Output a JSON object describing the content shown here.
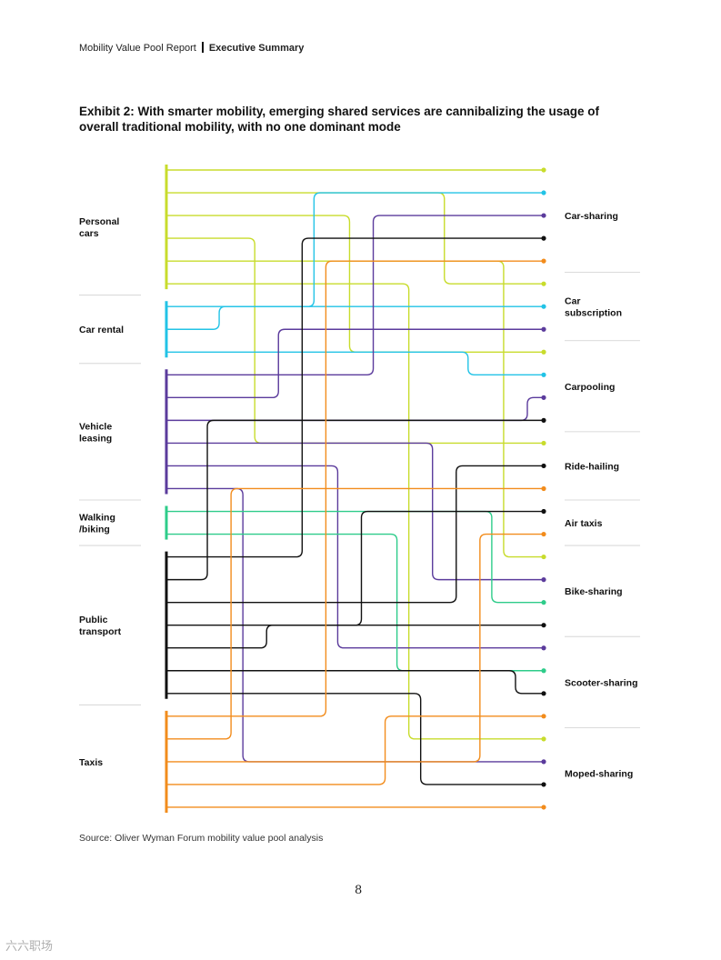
{
  "header": {
    "report": "Mobility Value Pool Report",
    "section": "Executive Summary"
  },
  "title": "Exhibit 2: With smarter mobility, emerging shared services are cannibalizing the usage of overall traditional mobility, with no one dominant mode",
  "source": "Source: Oliver Wyman Forum mobility value pool analysis",
  "page_number": "8",
  "watermark": "六六职场",
  "chart_data": {
    "type": "flow",
    "colors": {
      "Personal cars": "#c8dc2c",
      "Car rental": "#22c3e6",
      "Vehicle leasing": "#5b3b9c",
      "Walking /biking": "#2ecc8a",
      "Public transport": "#111111",
      "Taxis": "#f28c1c"
    },
    "sources": [
      {
        "label": "Personal cars",
        "lines": [
          "Personal",
          "cars"
        ]
      },
      {
        "label": "Car rental",
        "lines": [
          "Car rental"
        ]
      },
      {
        "label": "Vehicle leasing",
        "lines": [
          "Vehicle",
          "leasing"
        ]
      },
      {
        "label": "Walking /biking",
        "lines": [
          "Walking",
          "/biking"
        ]
      },
      {
        "label": "Public transport",
        "lines": [
          "Public",
          "transport"
        ]
      },
      {
        "label": "Taxis",
        "lines": [
          "Taxis"
        ]
      }
    ],
    "targets": [
      {
        "label": "Car-sharing",
        "lines": [
          "Car-sharing"
        ]
      },
      {
        "label": "Car subscription",
        "lines": [
          "Car",
          "subscription"
        ]
      },
      {
        "label": "Carpooling",
        "lines": [
          "Carpooling"
        ]
      },
      {
        "label": "Ride-hailing",
        "lines": [
          "Ride-hailing"
        ]
      },
      {
        "label": "Air taxis",
        "lines": [
          "Air taxis"
        ]
      },
      {
        "label": "Bike-sharing",
        "lines": [
          "Bike-sharing"
        ]
      },
      {
        "label": "Scooter-sharing",
        "lines": [
          "Scooter-sharing"
        ]
      },
      {
        "label": "Moped-sharing",
        "lines": [
          "Moped-sharing"
        ]
      }
    ],
    "flows": [
      {
        "from": "Personal cars",
        "to": "Car-sharing"
      },
      {
        "from": "Personal cars",
        "to": "Car subscription"
      },
      {
        "from": "Personal cars",
        "to": "Carpooling"
      },
      {
        "from": "Personal cars",
        "to": "Ride-hailing"
      },
      {
        "from": "Personal cars",
        "to": "Bike-sharing"
      },
      {
        "from": "Personal cars",
        "to": "Moped-sharing"
      },
      {
        "from": "Car rental",
        "to": "Car-sharing"
      },
      {
        "from": "Car rental",
        "to": "Car subscription"
      },
      {
        "from": "Car rental",
        "to": "Carpooling"
      },
      {
        "from": "Vehicle leasing",
        "to": "Car-sharing"
      },
      {
        "from": "Vehicle leasing",
        "to": "Car subscription"
      },
      {
        "from": "Vehicle leasing",
        "to": "Carpooling"
      },
      {
        "from": "Vehicle leasing",
        "to": "Bike-sharing"
      },
      {
        "from": "Vehicle leasing",
        "to": "Scooter-sharing"
      },
      {
        "from": "Vehicle leasing",
        "to": "Moped-sharing"
      },
      {
        "from": "Walking /biking",
        "to": "Bike-sharing"
      },
      {
        "from": "Walking /biking",
        "to": "Scooter-sharing"
      },
      {
        "from": "Public transport",
        "to": "Car-sharing"
      },
      {
        "from": "Public transport",
        "to": "Carpooling"
      },
      {
        "from": "Public transport",
        "to": "Ride-hailing"
      },
      {
        "from": "Public transport",
        "to": "Air taxis"
      },
      {
        "from": "Public transport",
        "to": "Bike-sharing"
      },
      {
        "from": "Public transport",
        "to": "Scooter-sharing"
      },
      {
        "from": "Public transport",
        "to": "Moped-sharing"
      },
      {
        "from": "Taxis",
        "to": "Car-sharing"
      },
      {
        "from": "Taxis",
        "to": "Ride-hailing"
      },
      {
        "from": "Taxis",
        "to": "Air taxis"
      },
      {
        "from": "Taxis",
        "to": "Scooter-sharing"
      },
      {
        "from": "Taxis",
        "to": "Moped-sharing"
      }
    ]
  }
}
